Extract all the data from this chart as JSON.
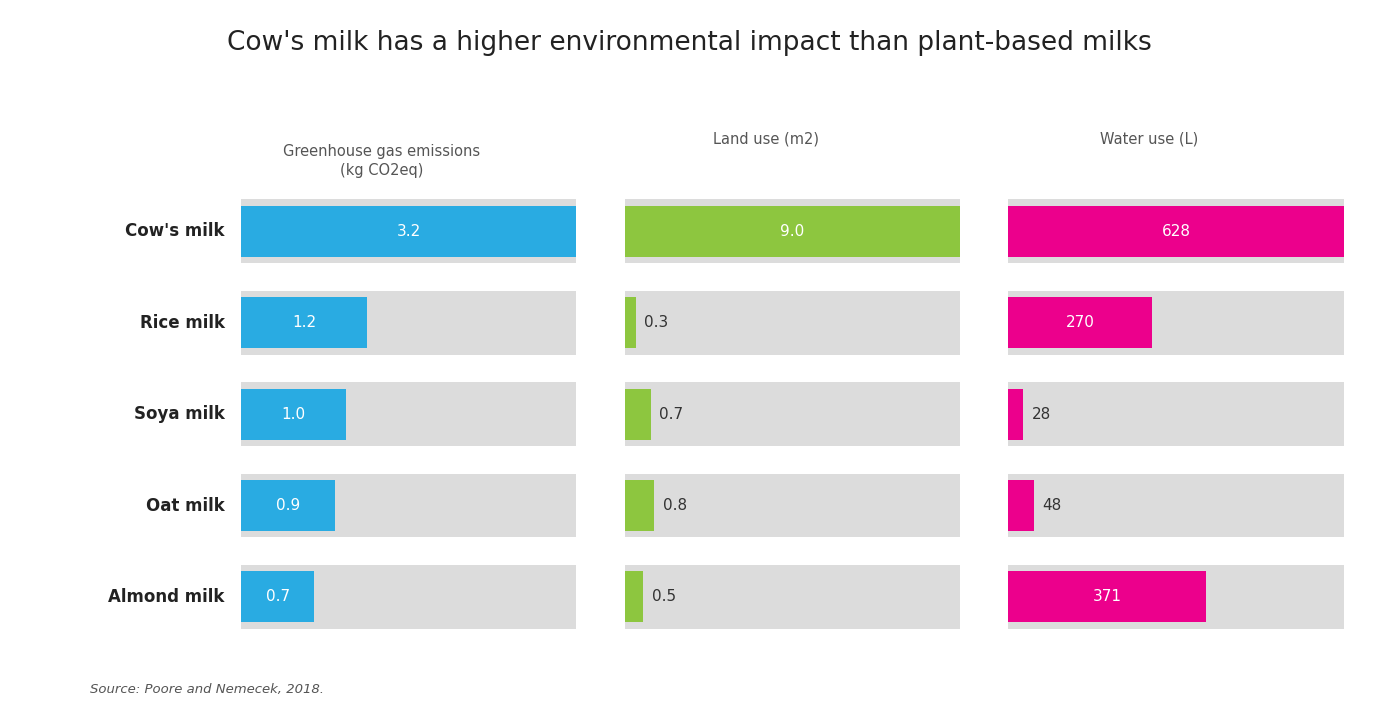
{
  "title": "Cow's milk has a higher environmental impact than plant-based milks",
  "categories": [
    "Cow's milk",
    "Rice milk",
    "Soya milk",
    "Oat milk",
    "Almond milk"
  ],
  "ghg": [
    3.2,
    1.2,
    1.0,
    0.9,
    0.7
  ],
  "ghg_max": 3.2,
  "land": [
    9.0,
    0.3,
    0.7,
    0.8,
    0.5
  ],
  "land_max": 9.0,
  "water": [
    628,
    270,
    28,
    48,
    371
  ],
  "water_max": 628,
  "ghg_color": "#29ABE2",
  "land_color": "#8DC63F",
  "water_color": "#EC008C",
  "bg_bar_color": "#DCDCDC",
  "bg_color": "#FFFFFF",
  "col1_label": "Greenhouse gas emissions\n(kg CO2eq)",
  "col2_label": "Land use (m2)",
  "col3_label": "Water use (L)",
  "source": "Source: Poore and Nemecek, 2018.",
  "title_fontsize": 19,
  "label_fontsize": 10.5,
  "cat_fontsize": 12,
  "val_fontsize": 11
}
